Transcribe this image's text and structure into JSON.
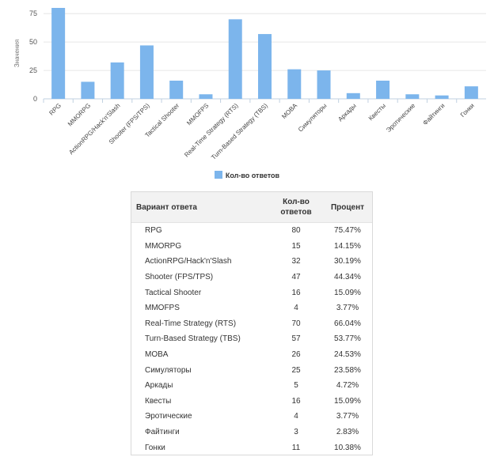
{
  "chart_data": {
    "type": "bar",
    "ylabel": "Значения",
    "ylim": [
      0,
      80
    ],
    "yticks": [
      0,
      25,
      50,
      75
    ],
    "grid": true,
    "legend_position": "bottom-center",
    "categories": [
      "RPG",
      "MMORPG",
      "ActionRPG/Hack'n'Slash",
      "Shooter (FPS/TPS)",
      "Tactical Shooter",
      "MMOFPS",
      "Real-Time Strategy (RTS)",
      "Turn-Based Strategy (TBS)",
      "MOBA",
      "Симуляторы",
      "Аркады",
      "Квесты",
      "Эротические",
      "Файтинги",
      "Гонки"
    ],
    "series": [
      {
        "name": "Кол-во ответов",
        "color": "#7cb5ec",
        "values": [
          80,
          15,
          32,
          47,
          16,
          4,
          70,
          57,
          26,
          25,
          5,
          16,
          4,
          3,
          11
        ]
      }
    ]
  },
  "table": {
    "headers": [
      "Вариант ответа",
      "Кол-во ответов",
      "Процент"
    ],
    "rows": [
      [
        "RPG",
        "80",
        "75.47%"
      ],
      [
        "MMORPG",
        "15",
        "14.15%"
      ],
      [
        "ActionRPG/Hack'n'Slash",
        "32",
        "30.19%"
      ],
      [
        "Shooter (FPS/TPS)",
        "47",
        "44.34%"
      ],
      [
        "Tactical Shooter",
        "16",
        "15.09%"
      ],
      [
        "MMOFPS",
        "4",
        "3.77%"
      ],
      [
        "Real-Time Strategy (RTS)",
        "70",
        "66.04%"
      ],
      [
        "Turn-Based Strategy (TBS)",
        "57",
        "53.77%"
      ],
      [
        "MOBA",
        "26",
        "24.53%"
      ],
      [
        "Симуляторы",
        "25",
        "23.58%"
      ],
      [
        "Аркады",
        "5",
        "4.72%"
      ],
      [
        "Квесты",
        "16",
        "15.09%"
      ],
      [
        "Эротические",
        "4",
        "3.77%"
      ],
      [
        "Файтинги",
        "3",
        "2.83%"
      ],
      [
        "Гонки",
        "11",
        "10.38%"
      ]
    ]
  }
}
